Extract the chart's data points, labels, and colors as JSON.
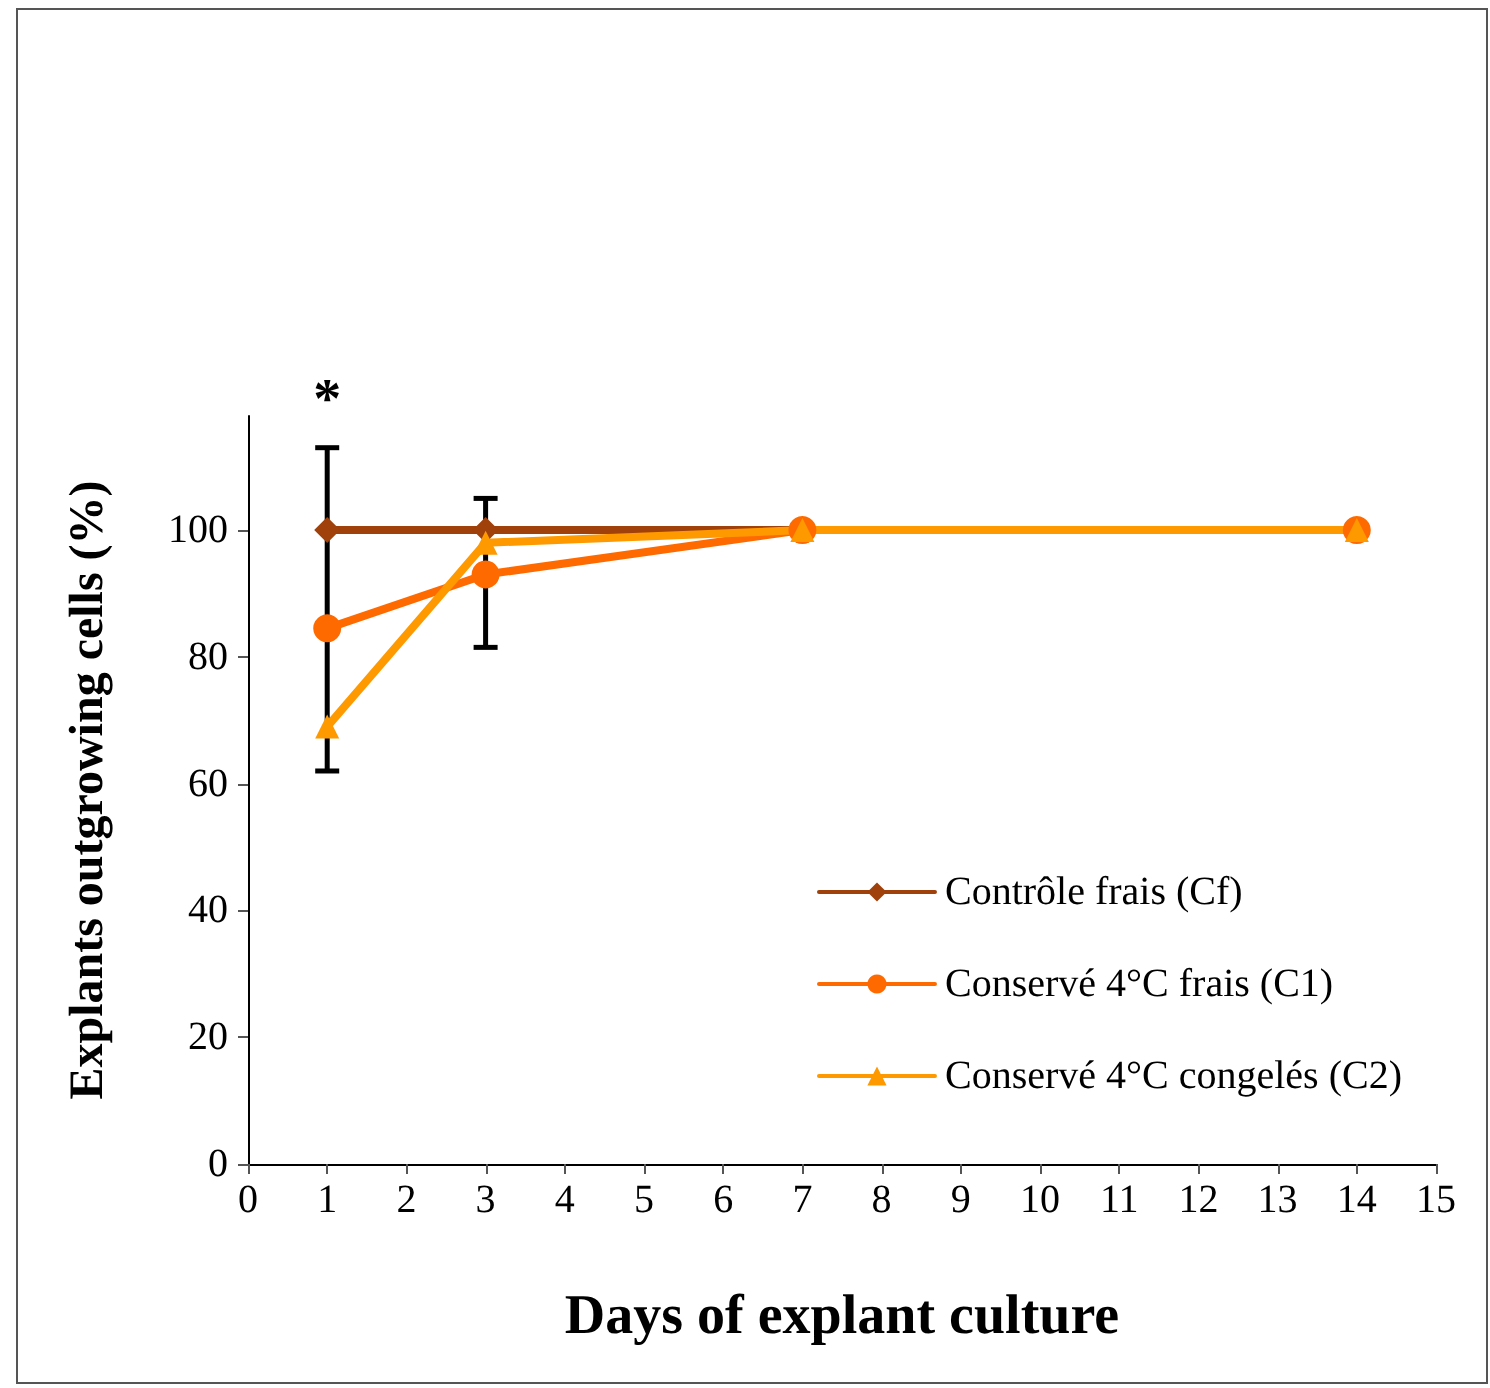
{
  "chart_data": {
    "type": "line",
    "xlabel": "Days of explant culture",
    "ylabel": "Explants outgrowing cells (%)",
    "x": [
      1,
      3,
      7,
      14
    ],
    "series": [
      {
        "name": "Contrôle frais (Cf)",
        "color": "#a0400a",
        "marker": "diamond",
        "values": [
          100,
          100,
          100,
          100
        ]
      },
      {
        "name": "Conservé 4°C frais (C1)",
        "color": "#ff6a00",
        "marker": "circle",
        "values": [
          84.5,
          93,
          100,
          100
        ],
        "errors": [
          [
            62,
            113
          ],
          [
            81.5,
            105
          ],
          null,
          null
        ]
      },
      {
        "name": "Conservé 4°C congelés (C2)",
        "color": "#ff9900",
        "marker": "triangle",
        "values": [
          69,
          98,
          100,
          100
        ]
      }
    ],
    "annotations": [
      {
        "text": "*",
        "x": 1,
        "y": 113
      }
    ],
    "xlim": [
      0,
      15
    ],
    "xticks": [
      0,
      1,
      2,
      3,
      4,
      5,
      6,
      7,
      8,
      9,
      10,
      11,
      12,
      13,
      14,
      15
    ],
    "ylim": [
      0,
      118
    ],
    "yticks": [
      0,
      20,
      40,
      60,
      80,
      100
    ],
    "grid": false,
    "legend": "right",
    "line_style": "solid"
  }
}
